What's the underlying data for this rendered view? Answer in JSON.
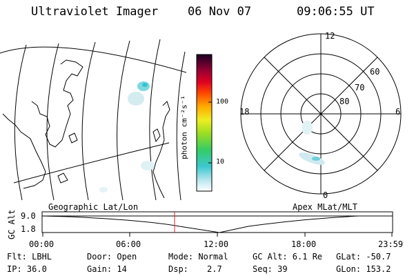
{
  "header": {
    "title": "Ultraviolet Imager",
    "date": "06 Nov 07",
    "time": "09:06:55 UT"
  },
  "colorbar": {
    "unit_label": "photon cm⁻²s⁻¹",
    "tick_100": "100",
    "tick_10": "10"
  },
  "polar_grid": {
    "mlt_labels": {
      "top": "12",
      "left": "18",
      "right": "6",
      "bottom": "0"
    },
    "mlat_labels": {
      "l60": "60",
      "l70": "70",
      "l80": "80"
    }
  },
  "timeline": {
    "left_label": "Geographic Lat/Lon",
    "right_label": "Apex MLat/MLT",
    "axis_label": "GC Alt",
    "y_top": "9.0",
    "y_bottom": "1.8",
    "x_ticks": [
      "00:00",
      "06:00",
      "12:00",
      "18:00",
      "23:59"
    ],
    "marker_time": "09:06:55"
  },
  "status": {
    "flt": "Flt: LBHL",
    "ip": "IP: 36.0",
    "door": "Door: Open",
    "gain": "Gain: 14",
    "mode": "Mode: Normal",
    "dsp_label": "Dsp:",
    "dsp_value": "2.7",
    "gc_alt": "GC Alt: 6.1 Re",
    "seq": "Seq: 39",
    "glat": "GLat: -50.7",
    "glon": "GLon: 153.2"
  }
}
